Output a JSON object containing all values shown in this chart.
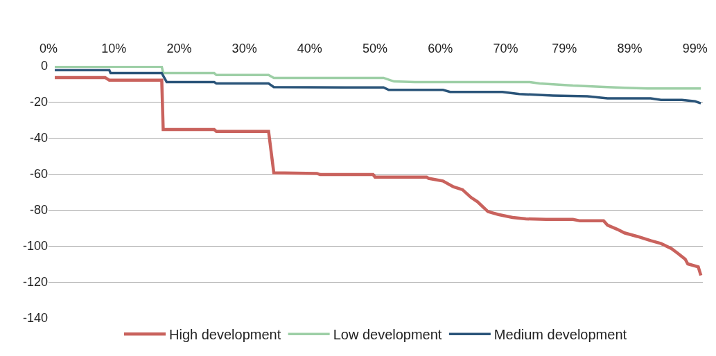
{
  "chart_data": {
    "type": "line",
    "xlim": [
      0,
      100.2
    ],
    "ylim": [
      -140,
      0
    ],
    "xticks": [
      {
        "value": 0,
        "label": "0%"
      },
      {
        "value": 10,
        "label": "10%"
      },
      {
        "value": 20,
        "label": "20%"
      },
      {
        "value": 30,
        "label": "30%"
      },
      {
        "value": 40,
        "label": "40%"
      },
      {
        "value": 50,
        "label": "50%"
      },
      {
        "value": 60,
        "label": "60%"
      },
      {
        "value": 70,
        "label": "70%"
      },
      {
        "value": 79,
        "label": "79%"
      },
      {
        "value": 89,
        "label": "89%"
      },
      {
        "value": 99,
        "label": "99%"
      }
    ],
    "yticks": [
      0,
      -20,
      -40,
      -60,
      -80,
      -100,
      -120,
      -140
    ],
    "grid": "y",
    "legend": "bottom",
    "marker": "none",
    "line_style": "solid",
    "series": [
      {
        "name": "High development",
        "color": "#c9625d",
        "x": [
          0.96,
          8.67,
          9.31,
          17.34,
          17.56,
          25.37,
          25.7,
          33.7,
          34.5,
          41.1,
          41.6,
          49.7,
          50.0,
          57.9,
          58.2,
          60.4,
          62.0,
          63.4,
          64.7,
          65.7,
          66.6,
          67.3,
          68.9,
          71.06,
          73.1,
          76.2,
          80.3,
          81.4,
          85.0,
          85.6,
          87.1,
          88.2,
          90.2,
          92.2,
          93.8,
          95.4,
          96.4,
          97.5,
          97.9,
          99.5,
          99.9
        ],
        "values": [
          -6.5,
          -6.5,
          -8,
          -8,
          -35.4,
          -35.4,
          -36.4,
          -36.4,
          -59.4,
          -59.8,
          -60.4,
          -60.4,
          -61.8,
          -61.8,
          -62.5,
          -64,
          -67.2,
          -68.8,
          -73.1,
          -75.5,
          -78.6,
          -81,
          -82.6,
          -84.2,
          -85,
          -85.3,
          -85.3,
          -86.1,
          -86.1,
          -88.5,
          -90.8,
          -92.8,
          -94.8,
          -97.1,
          -98.7,
          -101.5,
          -104.2,
          -107.4,
          -110,
          -111.7,
          -116.4
        ]
      },
      {
        "name": "Low development",
        "color": "#9dcfa6",
        "x": [
          0.96,
          17.34,
          17.56,
          25.37,
          25.7,
          33.7,
          34.5,
          51.3,
          52.9,
          56.1,
          73.7,
          75.2,
          80.3,
          85.6,
          88.2,
          91.75,
          99.9
        ],
        "values": [
          -0.5,
          -0.5,
          -4,
          -4,
          -5.1,
          -5.1,
          -6.7,
          -6.7,
          -8.7,
          -9,
          -9,
          -9.8,
          -11,
          -11.8,
          -12.2,
          -12.6,
          -12.6
        ]
      },
      {
        "name": "Medium development",
        "color": "#2a5479",
        "x": [
          0.96,
          9.31,
          9.5,
          17.34,
          18.09,
          25.37,
          25.7,
          33.7,
          34.5,
          45.4,
          51.3,
          52.1,
          60.4,
          61.5,
          69.5,
          72.1,
          77.25,
          82.5,
          85.6,
          92.2,
          93.8,
          97.0,
          99.0,
          99.9
        ],
        "values": [
          -2.4,
          -2.4,
          -4,
          -4,
          -9,
          -9,
          -9.8,
          -9.8,
          -11.8,
          -12,
          -12,
          -13.4,
          -13.4,
          -14.5,
          -14.5,
          -15.7,
          -16.5,
          -16.9,
          -18.1,
          -18.1,
          -18.9,
          -18.9,
          -19.7,
          -20.8
        ]
      }
    ]
  }
}
